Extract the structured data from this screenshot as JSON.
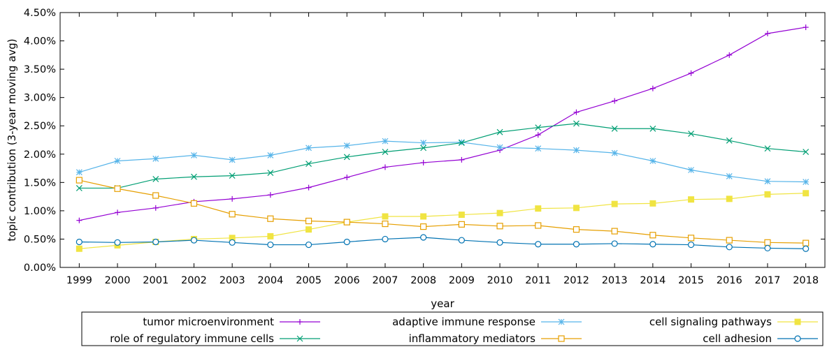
{
  "chart_data": {
    "type": "line",
    "xlabel": "year",
    "ylabel": "topic contribution (3-year moving avg)",
    "x": [
      1999,
      2000,
      2001,
      2002,
      2003,
      2004,
      2005,
      2006,
      2007,
      2008,
      2009,
      2010,
      2011,
      2012,
      2013,
      2014,
      2015,
      2016,
      2017,
      2018
    ],
    "xlim": [
      1998.5,
      2018.5
    ],
    "ylim": [
      0,
      4.5
    ],
    "y_ticks": [
      "0.00%",
      "0.50%",
      "1.00%",
      "1.50%",
      "2.00%",
      "2.50%",
      "3.00%",
      "3.50%",
      "4.00%",
      "4.50%"
    ],
    "grid": false,
    "legend_position": "bottom",
    "series": [
      {
        "name": "tumor microenvironment",
        "color": "#9400d3",
        "marker": "plus",
        "values": [
          0.83,
          0.97,
          1.05,
          1.16,
          1.21,
          1.28,
          1.41,
          1.59,
          1.77,
          1.85,
          1.9,
          2.07,
          2.34,
          2.74,
          2.94,
          3.16,
          3.43,
          3.75,
          4.13,
          4.24
        ]
      },
      {
        "name": "adaptive immune response",
        "color": "#56b4e9",
        "marker": "star",
        "values": [
          1.68,
          1.88,
          1.92,
          1.98,
          1.9,
          1.98,
          2.11,
          2.15,
          2.23,
          2.2,
          2.21,
          2.12,
          2.1,
          2.07,
          2.02,
          1.88,
          1.72,
          1.61,
          1.52,
          1.51
        ]
      },
      {
        "name": "cell signaling pathways",
        "color": "#f0e442",
        "marker": "filled-square",
        "values": [
          0.33,
          0.39,
          0.45,
          0.5,
          0.52,
          0.55,
          0.67,
          0.8,
          0.9,
          0.9,
          0.93,
          0.96,
          1.04,
          1.05,
          1.12,
          1.13,
          1.2,
          1.21,
          1.29,
          1.31
        ]
      },
      {
        "name": "role of regulatory immune cells",
        "color": "#009e73",
        "marker": "cross",
        "values": [
          1.4,
          1.4,
          1.56,
          1.6,
          1.62,
          1.67,
          1.83,
          1.95,
          2.04,
          2.11,
          2.2,
          2.39,
          2.47,
          2.54,
          2.45,
          2.45,
          2.36,
          2.24,
          2.1,
          2.04
        ]
      },
      {
        "name": "inflammatory mediators",
        "color": "#e69f00",
        "marker": "open-square",
        "values": [
          1.54,
          1.39,
          1.27,
          1.13,
          0.94,
          0.86,
          0.82,
          0.8,
          0.77,
          0.72,
          0.76,
          0.73,
          0.74,
          0.67,
          0.64,
          0.57,
          0.52,
          0.48,
          0.44,
          0.43
        ]
      },
      {
        "name": "cell adhesion",
        "color": "#0072b2",
        "marker": "circle",
        "values": [
          0.45,
          0.44,
          0.45,
          0.48,
          0.44,
          0.4,
          0.4,
          0.45,
          0.5,
          0.53,
          0.48,
          0.44,
          0.41,
          0.41,
          0.42,
          0.41,
          0.4,
          0.36,
          0.34,
          0.33
        ]
      }
    ]
  }
}
